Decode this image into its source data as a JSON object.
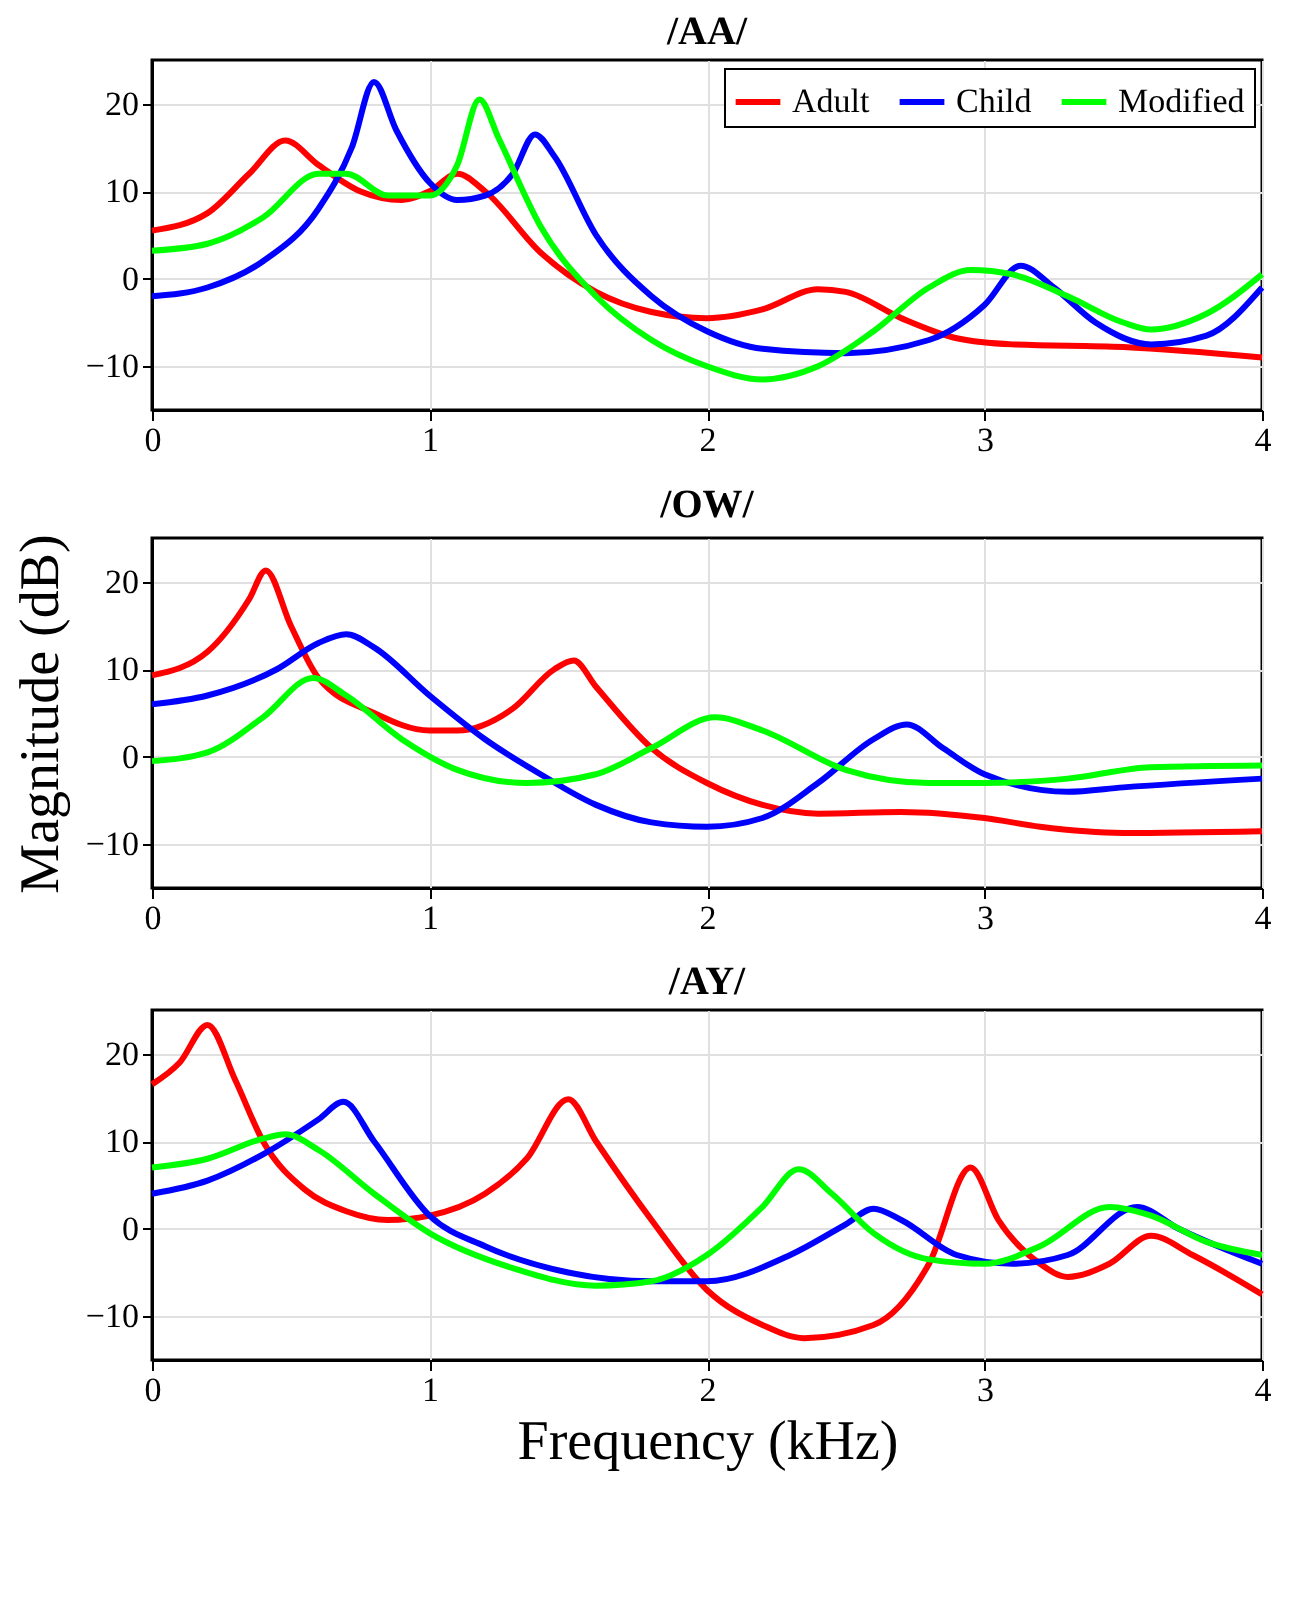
{
  "chart_data": [
    {
      "type": "line",
      "title": "/AA/",
      "xlim": [
        0,
        4
      ],
      "xticks": [
        0,
        1,
        2,
        3,
        4
      ],
      "ylim": [
        -15,
        25
      ],
      "yticks": [
        -10,
        0,
        10,
        20
      ],
      "grid": true,
      "legend": "top right",
      "line_style": "solid",
      "marker": "none",
      "series": [
        {
          "name": "Adult",
          "color": "#ff0000",
          "x": [
            0,
            0.2,
            0.35,
            0.48,
            0.6,
            0.75,
            0.9,
            1.0,
            1.1,
            1.2,
            1.4,
            1.6,
            1.8,
            2.0,
            2.2,
            2.4,
            2.5,
            2.7,
            2.9,
            3.1,
            3.5,
            4.0
          ],
          "values": [
            5.5,
            7.5,
            12,
            15.8,
            13,
            10,
            9,
            10,
            12,
            10,
            3,
            -1.5,
            -3.8,
            -4.5,
            -3.5,
            -1.2,
            -1.5,
            -4.5,
            -6.8,
            -7.5,
            -7.8,
            -9
          ]
        },
        {
          "name": "Child",
          "color": "#0000ff",
          "x": [
            0,
            0.2,
            0.4,
            0.6,
            0.72,
            0.8,
            0.88,
            1.0,
            1.1,
            1.2,
            1.3,
            1.38,
            1.45,
            1.6,
            1.8,
            2.0,
            2.2,
            2.5,
            2.8,
            3.0,
            3.13,
            3.25,
            3.4,
            3.6,
            3.8,
            4.0
          ],
          "values": [
            -2,
            -1,
            2,
            8,
            15,
            22.5,
            17,
            11,
            9,
            9.5,
            12,
            16.5,
            14,
            5,
            -2,
            -6,
            -8,
            -8.5,
            -7,
            -3,
            1.5,
            -1,
            -5,
            -7.5,
            -6.5,
            -1
          ]
        },
        {
          "name": "Modified",
          "color": "#00ff00",
          "x": [
            0,
            0.2,
            0.4,
            0.6,
            0.7,
            0.85,
            1.0,
            1.1,
            1.18,
            1.25,
            1.4,
            1.6,
            1.8,
            2.0,
            2.2,
            2.4,
            2.6,
            2.8,
            2.95,
            3.1,
            3.3,
            3.5,
            3.6,
            3.8,
            4.0
          ],
          "values": [
            3.2,
            4,
            7,
            12,
            12,
            9.5,
            9.5,
            13,
            20.5,
            16,
            6,
            -2,
            -7,
            -10,
            -11.5,
            -10,
            -6,
            -1,
            1,
            0.5,
            -2,
            -5,
            -5.8,
            -4,
            0.5
          ]
        }
      ]
    },
    {
      "type": "line",
      "title": "/OW/",
      "ylabel": "Magnitude (dB)",
      "xlim": [
        0,
        4
      ],
      "xticks": [
        0,
        1,
        2,
        3,
        4
      ],
      "ylim": [
        -15,
        25
      ],
      "yticks": [
        -10,
        0,
        10,
        20
      ],
      "grid": true,
      "legend": "top right",
      "line_style": "solid",
      "marker": "none",
      "series": [
        {
          "name": "Adult",
          "color": "#ff0000",
          "x": [
            0,
            0.2,
            0.35,
            0.41,
            0.5,
            0.6,
            0.8,
            1.0,
            1.1,
            1.3,
            1.45,
            1.52,
            1.6,
            1.8,
            2.0,
            2.2,
            2.4,
            2.7,
            3.0,
            3.2,
            3.5,
            4.0
          ],
          "values": [
            9.3,
            12,
            18,
            21.3,
            15,
            9,
            5,
            3,
            3,
            5.5,
            10,
            11,
            8,
            1,
            -3,
            -5.5,
            -6.5,
            -6.3,
            -7,
            -8,
            -8.7,
            -8.5
          ]
        },
        {
          "name": "Child",
          "color": "#0000ff",
          "x": [
            0,
            0.2,
            0.45,
            0.6,
            0.7,
            0.8,
            1.0,
            1.2,
            1.4,
            1.6,
            1.8,
            2.0,
            2.2,
            2.4,
            2.6,
            2.72,
            2.85,
            3.0,
            3.3,
            3.5,
            4.0
          ],
          "values": [
            6,
            7,
            10,
            13,
            14,
            12.5,
            7,
            2,
            -2,
            -5.5,
            -7.5,
            -8,
            -7,
            -3,
            2,
            3.7,
            1,
            -2,
            -4,
            -3.5,
            -2.5
          ]
        },
        {
          "name": "Modified",
          "color": "#00ff00",
          "x": [
            0,
            0.2,
            0.4,
            0.58,
            0.7,
            0.9,
            1.1,
            1.35,
            1.6,
            1.8,
            2.03,
            2.2,
            2.5,
            2.8,
            3.0,
            3.3,
            3.6,
            4.0
          ],
          "values": [
            -0.5,
            0.5,
            4.5,
            9,
            7,
            2,
            -1.5,
            -3,
            -2,
            1,
            4.5,
            3,
            -1.5,
            -3,
            -3,
            -2.5,
            -1.2,
            -1
          ]
        }
      ]
    },
    {
      "type": "line",
      "title": "/AY/",
      "xlabel": "Frequency (kHz)",
      "xlim": [
        0,
        4
      ],
      "xticks": [
        0,
        1,
        2,
        3,
        4
      ],
      "ylim": [
        -15,
        25
      ],
      "yticks": [
        -10,
        0,
        10,
        20
      ],
      "grid": true,
      "legend": "top right",
      "line_style": "solid",
      "marker": "none",
      "series": [
        {
          "name": "Adult",
          "color": "#ff0000",
          "x": [
            0,
            0.1,
            0.2,
            0.3,
            0.4,
            0.55,
            0.7,
            0.85,
            1.0,
            1.2,
            1.35,
            1.5,
            1.6,
            1.8,
            2.0,
            2.2,
            2.35,
            2.6,
            2.8,
            2.95,
            3.05,
            3.2,
            3.3,
            3.45,
            3.6,
            3.75,
            4.0
          ],
          "values": [
            16.5,
            19,
            23.3,
            17,
            10,
            4.5,
            2,
            1,
            1.5,
            4,
            8,
            14.8,
            10,
            1,
            -7,
            -11,
            -12.5,
            -11,
            -4,
            7,
            1,
            -4,
            -5.5,
            -4,
            -0.8,
            -3,
            -7.5
          ]
        },
        {
          "name": "Child",
          "color": "#0000ff",
          "x": [
            0,
            0.2,
            0.4,
            0.6,
            0.69,
            0.8,
            1.0,
            1.2,
            1.5,
            1.8,
            2.0,
            2.3,
            2.5,
            2.6,
            2.7,
            2.9,
            3.1,
            3.3,
            3.55,
            3.7,
            4.0
          ],
          "values": [
            4,
            5.5,
            8.5,
            12.5,
            14.5,
            10,
            1.5,
            -2,
            -5,
            -6,
            -6,
            -3,
            0.5,
            2.3,
            1,
            -3,
            -4,
            -3,
            2.5,
            0,
            -4
          ]
        },
        {
          "name": "Modified",
          "color": "#00ff00",
          "x": [
            0,
            0.2,
            0.4,
            0.48,
            0.6,
            0.8,
            1.0,
            1.3,
            1.6,
            1.8,
            2.0,
            2.2,
            2.33,
            2.45,
            2.6,
            2.8,
            3.0,
            3.2,
            3.45,
            3.6,
            3.8,
            4.0
          ],
          "values": [
            7,
            8,
            10.3,
            10.8,
            9,
            4,
            -0.5,
            -4.5,
            -6.5,
            -6,
            -3,
            2.5,
            6.8,
            4,
            -0.5,
            -3.5,
            -4,
            -2,
            2.5,
            1.5,
            -1.5,
            -3
          ]
        }
      ]
    }
  ]
}
